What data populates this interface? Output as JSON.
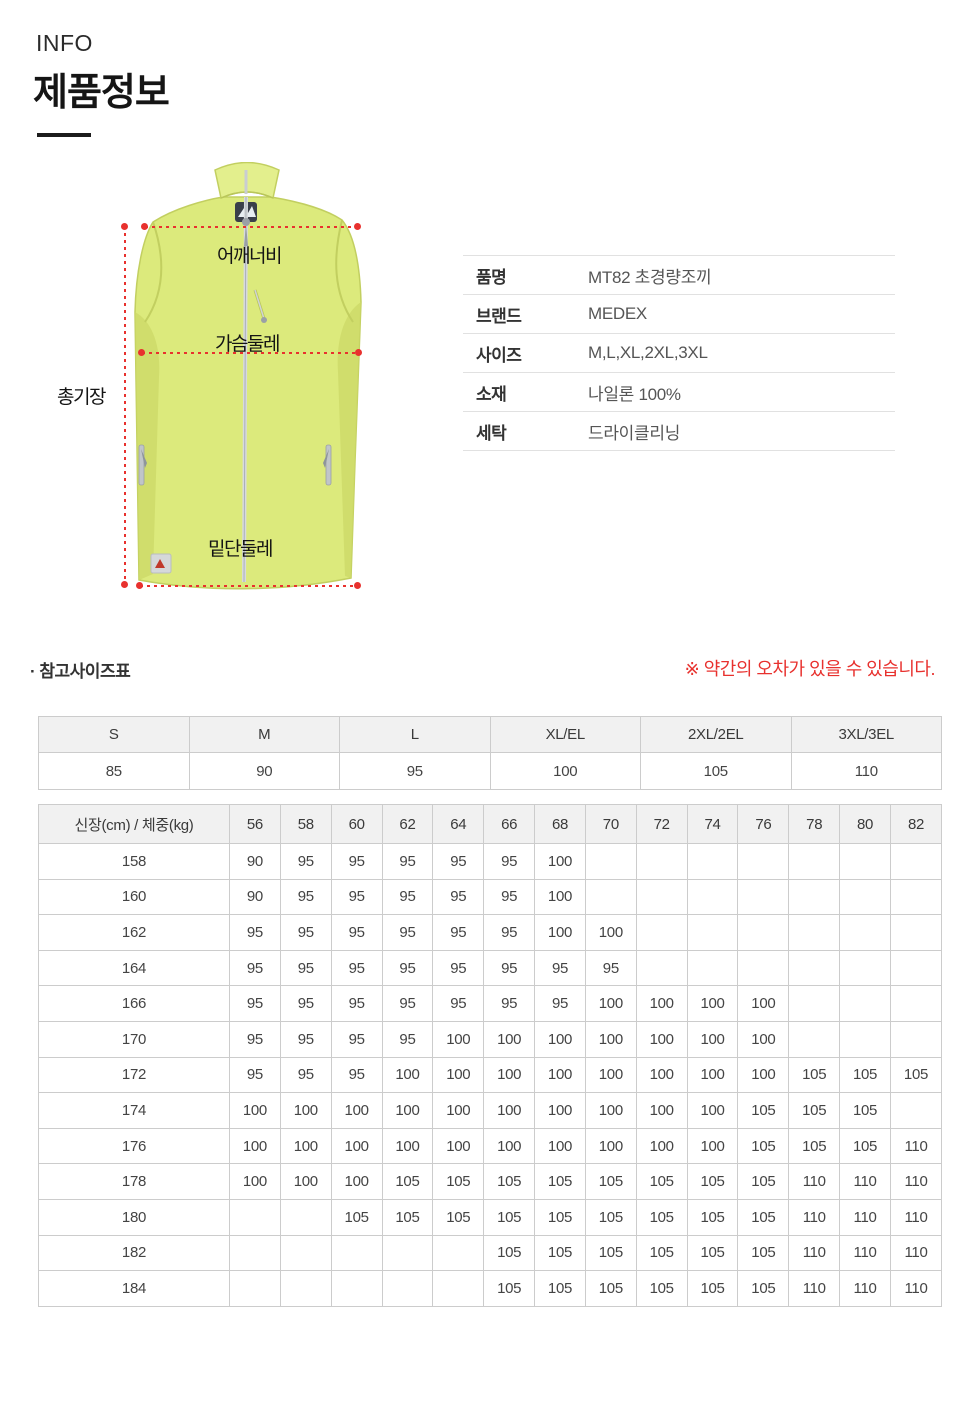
{
  "header": {
    "eyebrow": "INFO",
    "title": "제품정보"
  },
  "colors": {
    "accent_red": "#e8312e",
    "vest_lime": "#dcea7c",
    "vest_lime_dark": "#cdd968",
    "vest_collar": "#e3ef8d"
  },
  "product_figure": {
    "labels": {
      "shoulder": "어깨너비",
      "chest": "가슴둘레",
      "length": "총기장",
      "hem": "밑단둘레"
    }
  },
  "spec_table": {
    "rows": [
      {
        "label": "품명",
        "value": "MT82 초경량조끼"
      },
      {
        "label": "브랜드",
        "value": "MEDEX"
      },
      {
        "label": "사이즈",
        "value": "M,L,XL,2XL,3XL"
      },
      {
        "label": "소재",
        "value": "나일론 100%"
      },
      {
        "label": "세탁",
        "value": "드라이클리닝"
      }
    ]
  },
  "size_section": {
    "note_left": "· 참고사이즈표",
    "note_right": "※ 약간의 오차가 있을 수 있습니다.",
    "size_table": {
      "headers": [
        "S",
        "M",
        "L",
        "XL/EL",
        "2XL/2EL",
        "3XL/3EL"
      ],
      "values": [
        "85",
        "90",
        "95",
        "100",
        "105",
        "110"
      ]
    },
    "matrix_table": {
      "corner_label": "신장(cm) / 체중(kg)",
      "weights": [
        "56",
        "58",
        "60",
        "62",
        "64",
        "66",
        "68",
        "70",
        "72",
        "74",
        "76",
        "78",
        "80",
        "82"
      ],
      "rows": [
        {
          "height": "158",
          "values": [
            "90",
            "95",
            "95",
            "95",
            "95",
            "95",
            "100",
            "",
            "",
            "",
            "",
            "",
            "",
            ""
          ]
        },
        {
          "height": "160",
          "values": [
            "90",
            "95",
            "95",
            "95",
            "95",
            "95",
            "100",
            "",
            "",
            "",
            "",
            "",
            "",
            ""
          ]
        },
        {
          "height": "162",
          "values": [
            "95",
            "95",
            "95",
            "95",
            "95",
            "95",
            "100",
            "100",
            "",
            "",
            "",
            "",
            "",
            ""
          ]
        },
        {
          "height": "164",
          "values": [
            "95",
            "95",
            "95",
            "95",
            "95",
            "95",
            "95",
            "95",
            "",
            "",
            "",
            "",
            "",
            ""
          ]
        },
        {
          "height": "166",
          "values": [
            "95",
            "95",
            "95",
            "95",
            "95",
            "95",
            "95",
            "100",
            "100",
            "100",
            "100",
            "",
            "",
            ""
          ]
        },
        {
          "height": "170",
          "values": [
            "95",
            "95",
            "95",
            "95",
            "100",
            "100",
            "100",
            "100",
            "100",
            "100",
            "100",
            "",
            "",
            ""
          ]
        },
        {
          "height": "172",
          "values": [
            "95",
            "95",
            "95",
            "100",
            "100",
            "100",
            "100",
            "100",
            "100",
            "100",
            "100",
            "105",
            "105",
            "105"
          ]
        },
        {
          "height": "174",
          "values": [
            "100",
            "100",
            "100",
            "100",
            "100",
            "100",
            "100",
            "100",
            "100",
            "100",
            "105",
            "105",
            "105",
            ""
          ]
        },
        {
          "height": "176",
          "values": [
            "100",
            "100",
            "100",
            "100",
            "100",
            "100",
            "100",
            "100",
            "100",
            "100",
            "105",
            "105",
            "105",
            "110"
          ]
        },
        {
          "height": "178",
          "values": [
            "100",
            "100",
            "100",
            "105",
            "105",
            "105",
            "105",
            "105",
            "105",
            "105",
            "105",
            "110",
            "110",
            "110"
          ]
        },
        {
          "height": "180",
          "values": [
            "",
            "",
            "105",
            "105",
            "105",
            "105",
            "105",
            "105",
            "105",
            "105",
            "105",
            "110",
            "110",
            "110"
          ]
        },
        {
          "height": "182",
          "values": [
            "",
            "",
            "",
            "",
            "",
            "105",
            "105",
            "105",
            "105",
            "105",
            "105",
            "110",
            "110",
            "110"
          ]
        },
        {
          "height": "184",
          "values": [
            "",
            "",
            "",
            "",
            "",
            "105",
            "105",
            "105",
            "105",
            "105",
            "105",
            "110",
            "110",
            "110"
          ]
        }
      ]
    }
  }
}
